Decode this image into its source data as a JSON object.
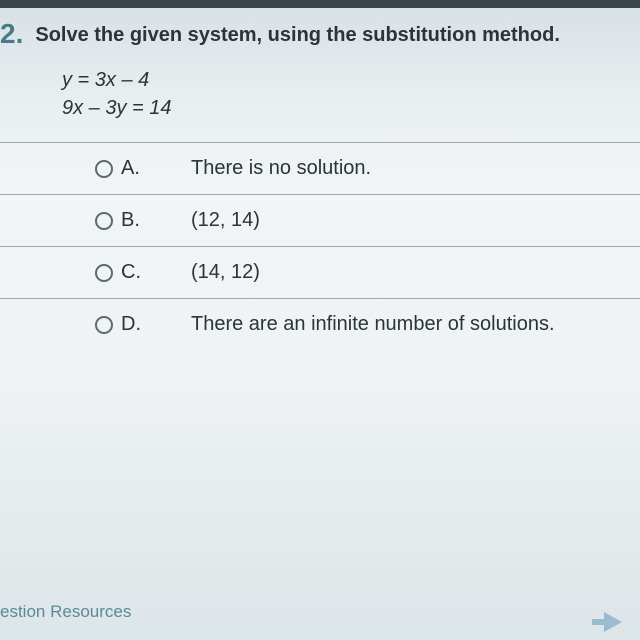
{
  "question": {
    "number": "2.",
    "prompt": "Solve the given system, using the substitution method.",
    "equations": [
      "y = 3x – 4",
      "9x – 3y = 14"
    ]
  },
  "options": [
    {
      "letter": "A.",
      "text": "There is no solution."
    },
    {
      "letter": "B.",
      "text": "(12, 14)"
    },
    {
      "letter": "C.",
      "text": "(14, 12)"
    },
    {
      "letter": "D.",
      "text": "There are an infinite number of solutions."
    }
  ],
  "footer": {
    "resources_label": "estion Resources"
  },
  "colors": {
    "number_color": "#4a7a8a",
    "text_color": "#2a3538",
    "border_color": "#9ca8ac",
    "radio_border": "#5a6a6e",
    "footer_link": "#5a8a9a"
  }
}
